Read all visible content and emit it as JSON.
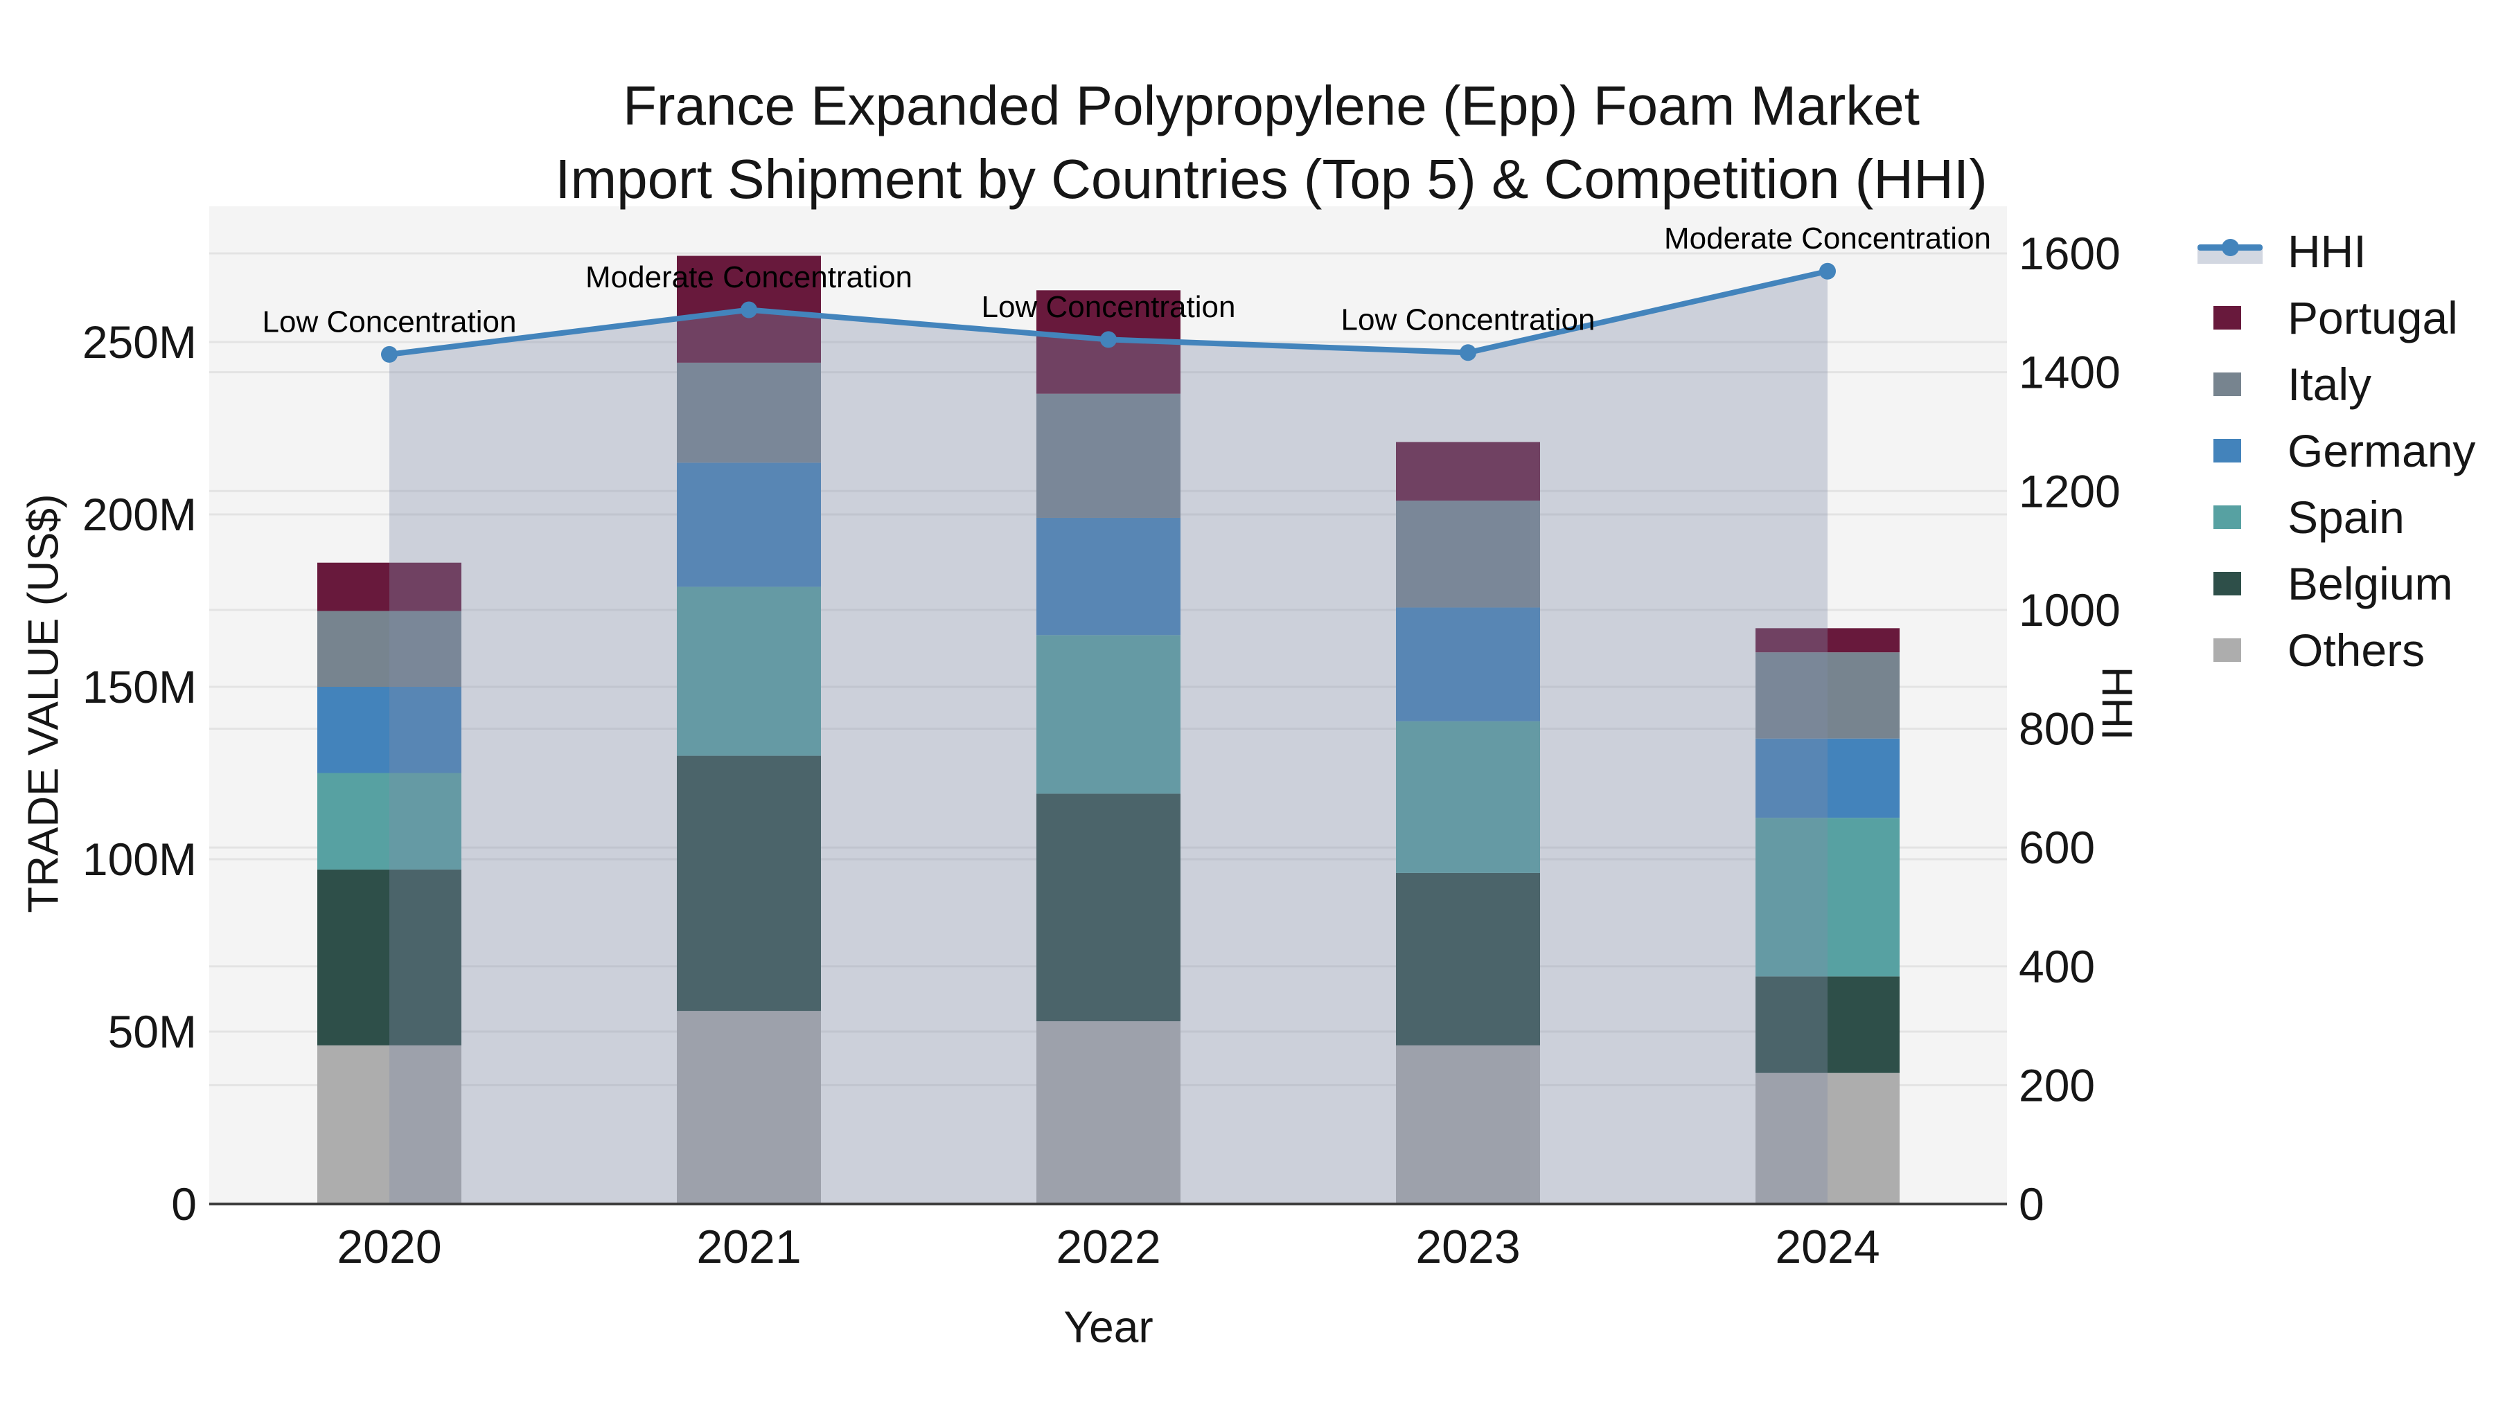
{
  "title": {
    "line1": "France Expanded Polypropylene (Epp) Foam Market",
    "line2": "Import Shipment by Countries (Top 5) & Competition (HHI)"
  },
  "axes": {
    "x_title": "Year",
    "y_left_title": "TRADE VALUE (US$)",
    "y_right_title": "HHI"
  },
  "chart_data": {
    "type": "combo: stacked-bar (left axis) + line (right axis)",
    "categories": [
      "2020",
      "2021",
      "2022",
      "2023",
      "2024"
    ],
    "xlabel": "Year",
    "y_left": {
      "title": "TRADE VALUE (US$)",
      "unit": "million US$",
      "ticks": [
        0,
        50,
        100,
        150,
        200,
        250
      ],
      "tick_labels": [
        "0",
        "50M",
        "100M",
        "150M",
        "200M",
        "250M"
      ],
      "range": [
        0,
        290
      ]
    },
    "y_right": {
      "title": "HHI",
      "ticks": [
        0,
        200,
        400,
        600,
        800,
        1000,
        1200,
        1400,
        1600
      ],
      "tick_labels": [
        "0",
        "200",
        "400",
        "600",
        "800",
        "1000",
        "1200",
        "1400",
        "1600"
      ],
      "range": [
        0,
        1680
      ]
    },
    "bar_series_bottom_to_top": [
      {
        "name": "Others",
        "color": "#adadad",
        "values_musd": [
          46,
          56,
          53,
          46,
          38
        ]
      },
      {
        "name": "Belgium",
        "color": "#2e4f49",
        "values_musd": [
          51,
          74,
          66,
          50,
          28
        ]
      },
      {
        "name": "Spain",
        "color": "#57a1a2",
        "values_musd": [
          28,
          49,
          46,
          44,
          46
        ]
      },
      {
        "name": "Germany",
        "color": "#4383bb",
        "values_musd": [
          25,
          36,
          34,
          33,
          23
        ]
      },
      {
        "name": "Italy",
        "color": "#77848f",
        "values_musd": [
          22,
          29,
          36,
          31,
          25
        ]
      },
      {
        "name": "Portugal",
        "color": "#68193c",
        "values_musd": [
          14,
          31,
          30,
          17,
          7
        ]
      }
    ],
    "bar_totals_musd": [
      186,
      275,
      265,
      221,
      167
    ],
    "line_series": {
      "name": "HHI",
      "axis": "right",
      "color": "#4384bc",
      "values": [
        1430,
        1505,
        1455,
        1433,
        1570
      ],
      "area_fill": "rgba(130,140,170,0.35)"
    },
    "annotations": [
      {
        "category": "2020",
        "text": "Low Concentration"
      },
      {
        "category": "2021",
        "text": "Moderate Concentration"
      },
      {
        "category": "2022",
        "text": "Low Concentration"
      },
      {
        "category": "2023",
        "text": "Low Concentration"
      },
      {
        "category": "2024",
        "text": "Moderate Concentration"
      }
    ],
    "legend_position": "right",
    "grid": true
  },
  "legend": {
    "items": [
      {
        "label": "HHI",
        "type": "line-marker",
        "color": "#4384bc"
      },
      {
        "label": "Portugal",
        "type": "swatch",
        "color": "#68193c"
      },
      {
        "label": "Italy",
        "type": "swatch",
        "color": "#77848f"
      },
      {
        "label": "Germany",
        "type": "swatch",
        "color": "#4383bb"
      },
      {
        "label": "Spain",
        "type": "swatch",
        "color": "#57a1a2"
      },
      {
        "label": "Belgium",
        "type": "swatch",
        "color": "#2e4f49"
      },
      {
        "label": "Others",
        "type": "swatch",
        "color": "#adadad"
      }
    ]
  },
  "colors": {
    "plot_background": "#f4f4f4",
    "gridline": "#e3e3e3",
    "axis_line": "#3c3c3c",
    "text": "#161616"
  }
}
